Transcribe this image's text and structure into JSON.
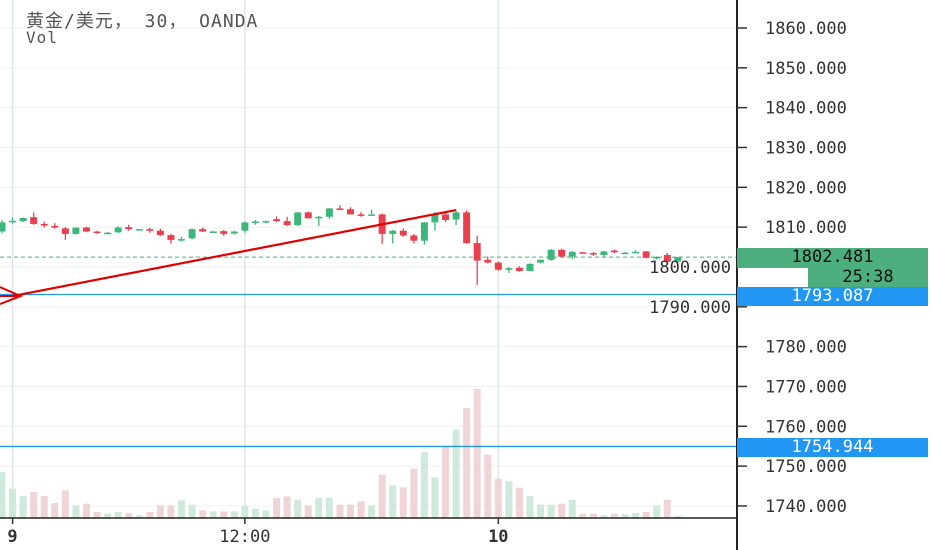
{
  "header": {
    "title": "黄金/美元， 30， OANDA",
    "sub": "Vol"
  },
  "colors": {
    "up": "#26a69a",
    "down": "#ef5350",
    "up_body": "#3cb77b",
    "down_body": "#e8404f",
    "hline": "#2196f3",
    "trend": "#e00000",
    "last_price_bg": "#4caf7d"
  },
  "chart_data": {
    "type": "candlestick",
    "symbol": "黄金/美元",
    "interval": "30",
    "source": "OANDA",
    "ylim": [
      1735,
      1865
    ],
    "y_ticks": [
      "1860.000",
      "1850.000",
      "1840.000",
      "1830.000",
      "1820.000",
      "1810.000",
      "1800.000",
      "1790.000",
      "1780.000",
      "1770.000",
      "1760.000",
      "1750.000",
      "1740.000"
    ],
    "x_ticks": [
      {
        "label": "9",
        "bar": 1
      },
      {
        "label": "12:00",
        "bar": 23
      },
      {
        "label": "10",
        "bar": 47
      }
    ],
    "grid": true,
    "ohlc": [
      [
        1808.9,
        1811.8,
        1808.5,
        1811.2
      ],
      [
        1811.5,
        1812.4,
        1810.9,
        1811.6
      ],
      [
        1811.5,
        1812.4,
        1811.3,
        1812.3
      ],
      [
        1812.5,
        1813.7,
        1810.6,
        1810.8
      ],
      [
        1810.8,
        1811.4,
        1809.9,
        1810.4
      ],
      [
        1810.3,
        1811.0,
        1809.6,
        1809.9
      ],
      [
        1809.7,
        1810.0,
        1806.8,
        1808.3
      ],
      [
        1808.3,
        1809.9,
        1808.1,
        1809.9
      ],
      [
        1809.9,
        1810.1,
        1808.7,
        1808.9
      ],
      [
        1808.9,
        1809.1,
        1808.3,
        1808.5
      ],
      [
        1808.5,
        1808.8,
        1808.4,
        1808.6
      ],
      [
        1808.7,
        1810.2,
        1808.5,
        1809.9
      ],
      [
        1810.0,
        1810.6,
        1809.1,
        1809.5
      ],
      [
        1809.4,
        1809.6,
        1809.2,
        1809.5
      ],
      [
        1809.5,
        1809.8,
        1808.6,
        1809.1
      ],
      [
        1809.1,
        1809.6,
        1807.8,
        1808.0
      ],
      [
        1808.0,
        1808.3,
        1805.9,
        1806.8
      ],
      [
        1806.9,
        1807.6,
        1806.4,
        1807.0
      ],
      [
        1807.2,
        1809.7,
        1807.0,
        1809.5
      ],
      [
        1809.5,
        1809.9,
        1808.8,
        1808.9
      ],
      [
        1808.9,
        1809.1,
        1808.7,
        1808.9
      ],
      [
        1809.0,
        1809.3,
        1807.8,
        1808.3
      ],
      [
        1808.4,
        1809.1,
        1808.2,
        1808.9
      ],
      [
        1809.1,
        1811.4,
        1808.6,
        1811.2
      ],
      [
        1811.3,
        1811.8,
        1810.6,
        1811.4
      ],
      [
        1811.2,
        1811.7,
        1811.0,
        1811.5
      ],
      [
        1812.0,
        1812.7,
        1811.3,
        1811.5
      ],
      [
        1811.5,
        1812.6,
        1810.3,
        1810.5
      ],
      [
        1810.5,
        1813.8,
        1810.3,
        1813.7
      ],
      [
        1813.7,
        1813.9,
        1812.2,
        1812.2
      ],
      [
        1812.4,
        1812.8,
        1810.3,
        1812.6
      ],
      [
        1812.6,
        1814.8,
        1812.1,
        1814.7
      ],
      [
        1814.7,
        1815.5,
        1814.4,
        1814.5
      ],
      [
        1814.5,
        1815.0,
        1813.2,
        1813.2
      ],
      [
        1813.2,
        1813.8,
        1812.6,
        1813.0
      ],
      [
        1813.1,
        1814.4,
        1812.9,
        1813.2
      ],
      [
        1813.2,
        1813.4,
        1805.8,
        1808.3
      ],
      [
        1808.3,
        1809.3,
        1805.9,
        1809.1
      ],
      [
        1809.1,
        1809.7,
        1807.6,
        1807.9
      ],
      [
        1807.9,
        1808.3,
        1805.9,
        1806.6
      ],
      [
        1806.6,
        1811.3,
        1805.6,
        1811.2
      ],
      [
        1811.2,
        1813.8,
        1809.1,
        1813.2
      ],
      [
        1813.2,
        1813.9,
        1811.3,
        1811.8
      ],
      [
        1811.9,
        1814.3,
        1810.5,
        1813.7
      ],
      [
        1813.7,
        1814.2,
        1805.8,
        1806.0
      ],
      [
        1806.0,
        1807.9,
        1795.5,
        1801.6
      ],
      [
        1801.8,
        1802.6,
        1800.9,
        1801.1
      ],
      [
        1801.1,
        1801.4,
        1799.1,
        1799.3
      ],
      [
        1799.3,
        1800.0,
        1798.5,
        1799.7
      ],
      [
        1799.8,
        1800.2,
        1798.8,
        1799.0
      ],
      [
        1799.0,
        1800.9,
        1798.9,
        1800.8
      ],
      [
        1801.1,
        1801.9,
        1800.9,
        1801.8
      ],
      [
        1801.8,
        1804.5,
        1801.6,
        1804.3
      ],
      [
        1804.3,
        1804.6,
        1802.4,
        1802.6
      ],
      [
        1802.6,
        1804.0,
        1802.0,
        1803.8
      ],
      [
        1803.7,
        1803.8,
        1803.4,
        1803.6
      ],
      [
        1803.5,
        1803.7,
        1802.8,
        1803.3
      ],
      [
        1803.0,
        1804.0,
        1802.5,
        1803.9
      ],
      [
        1804.1,
        1804.4,
        1803.5,
        1803.7
      ],
      [
        1803.6,
        1803.8,
        1803.5,
        1803.6
      ],
      [
        1803.8,
        1804.2,
        1803.7,
        1803.8
      ],
      [
        1803.9,
        1804.0,
        1802.2,
        1802.3
      ],
      [
        1802.2,
        1802.7,
        1801.9,
        1802.5
      ],
      [
        1803.0,
        1803.5,
        1801.1,
        1801.3
      ],
      [
        1801.4,
        1802.3,
        1801.2,
        1802.481
      ]
    ],
    "volume_relative": [
      138,
      88,
      66,
      78,
      66,
      45,
      83,
      38,
      43,
      18,
      13,
      18,
      15,
      8,
      18,
      38,
      38,
      53,
      40,
      23,
      20,
      20,
      20,
      36,
      28,
      23,
      60,
      65,
      55,
      38,
      60,
      60,
      40,
      40,
      50,
      38,
      130,
      98,
      92,
      148,
      198,
      122,
      216,
      265,
      330,
      388,
      190,
      118,
      110,
      91,
      66,
      40,
      40,
      43,
      55,
      13,
      13,
      8,
      13,
      11,
      15,
      18,
      38,
      55,
      6
    ],
    "last_price": "1802.481",
    "countdown": "25:38",
    "horizontal_lines": [
      {
        "price": 1793.087,
        "label": "1793.087"
      },
      {
        "price": 1754.944,
        "label": "1754.944"
      }
    ],
    "trend_line": {
      "from": {
        "bar": 1,
        "price": 1792.7
      },
      "to": {
        "bar": 43,
        "price": 1814.3
      }
    }
  }
}
